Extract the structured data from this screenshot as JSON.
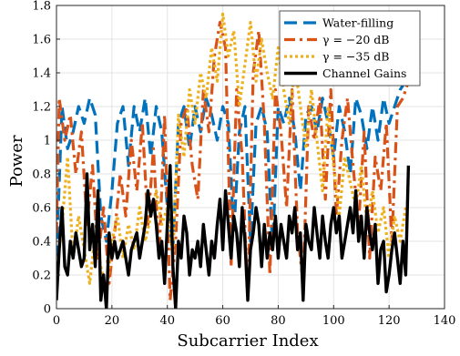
{
  "chart_data": {
    "type": "line",
    "xlabel": "Subcarrier Index",
    "ylabel": "Power",
    "xlim": [
      0,
      140
    ],
    "ylim": [
      0,
      1.8
    ],
    "xticks": [
      0,
      20,
      40,
      60,
      80,
      100,
      120,
      140
    ],
    "yticks": [
      0,
      0.2,
      0.4,
      0.6,
      0.8,
      1,
      1.2,
      1.4,
      1.6,
      1.8
    ],
    "xtick_labels": [
      "0",
      "20",
      "40",
      "60",
      "80",
      "100",
      "120",
      "140"
    ],
    "ytick_labels": [
      "0",
      "0.2",
      "0.4",
      "0.6",
      "0.8",
      "1",
      "1.2",
      "1.4",
      "1.6",
      "1.8"
    ],
    "grid": true,
    "legend_position": "top-right",
    "series": [
      {
        "name": "Water-filling",
        "color": "#0072bd",
        "style": "dashed",
        "x": [
          0,
          2,
          4,
          6,
          8,
          10,
          12,
          14,
          16,
          18,
          20,
          22,
          24,
          26,
          28,
          30,
          32,
          34,
          36,
          38,
          40,
          42,
          44,
          46,
          48,
          50,
          52,
          54,
          56,
          58,
          60,
          62,
          64,
          66,
          68,
          70,
          72,
          74,
          76,
          78,
          80,
          82,
          84,
          86,
          88,
          90,
          92,
          94,
          96,
          98,
          100,
          102,
          104,
          106,
          108,
          110,
          112,
          114,
          116,
          118,
          120,
          122,
          124,
          126
        ],
        "y": [
          0.3,
          1.2,
          0.95,
          1.05,
          1.2,
          1.1,
          1.25,
          1.15,
          0.55,
          0.4,
          0.7,
          1.1,
          1.2,
          0.85,
          1.2,
          1.05,
          1.25,
          0.9,
          1.2,
          1.05,
          0.6,
          0.35,
          1.1,
          1.2,
          0.95,
          1.2,
          1.05,
          1.25,
          1.15,
          1.0,
          1.2,
          1.1,
          0.45,
          1.05,
          1.2,
          0.4,
          1.1,
          1.2,
          1.05,
          0.35,
          1.2,
          1.1,
          1.25,
          1.05,
          0.7,
          1.15,
          1.2,
          1.05,
          1.25,
          1.1,
          0.9,
          1.2,
          1.05,
          0.8,
          1.25,
          1.15,
          0.95,
          1.2,
          1.0,
          1.25,
          1.1,
          1.2,
          1.3,
          1.35
        ]
      },
      {
        "name": "γ = −20 dB",
        "color": "#d95319",
        "style": "dash-dot",
        "x": [
          0,
          1,
          3,
          5,
          7,
          9,
          11,
          13,
          15,
          17,
          19,
          21,
          23,
          25,
          27,
          29,
          31,
          33,
          35,
          37,
          39,
          41,
          43,
          45,
          47,
          49,
          51,
          53,
          55,
          57,
          59,
          61,
          63,
          65,
          67,
          69,
          71,
          73,
          75,
          77,
          79,
          81,
          83,
          85,
          87,
          89,
          91,
          93,
          95,
          97,
          99,
          101,
          103,
          105,
          107,
          109,
          111,
          113,
          115,
          117,
          119,
          121,
          123,
          125,
          127
        ],
        "y": [
          0.45,
          1.25,
          1.0,
          1.15,
          0.8,
          1.05,
          0.5,
          0.85,
          0.3,
          0.6,
          0.15,
          0.45,
          0.8,
          0.55,
          1.0,
          0.7,
          1.1,
          0.5,
          0.95,
          0.3,
          1.15,
          0.05,
          0.4,
          1.1,
          1.2,
          0.85,
          0.65,
          1.3,
          1.05,
          1.5,
          1.7,
          1.55,
          0.25,
          1.3,
          0.9,
          0.05,
          1.4,
          1.65,
          1.1,
          0.2,
          1.3,
          1.05,
          0.6,
          1.3,
          0.45,
          0.15,
          1.2,
          1.0,
          1.25,
          0.65,
          1.3,
          0.55,
          1.0,
          1.25,
          0.85,
          0.5,
          1.05,
          0.3,
          0.9,
          0.7,
          1.1,
          0.4,
          1.2,
          1.25,
          1.35
        ]
      },
      {
        "name": "γ = −35 dB",
        "color": "#edb120",
        "style": "dotted",
        "x": [
          0,
          2,
          4,
          6,
          8,
          10,
          12,
          14,
          16,
          18,
          20,
          22,
          24,
          26,
          28,
          30,
          32,
          34,
          36,
          38,
          40,
          42,
          44,
          46,
          48,
          50,
          52,
          54,
          56,
          58,
          60,
          62,
          64,
          66,
          68,
          70,
          72,
          74,
          76,
          78,
          80,
          82,
          84,
          86,
          88,
          90,
          92,
          94,
          96,
          98,
          100,
          102,
          104,
          106,
          108,
          110,
          112,
          114,
          116,
          118,
          120,
          122,
          124,
          126
        ],
        "y": [
          0.2,
          0.5,
          0.9,
          0.3,
          0.55,
          0.35,
          0.15,
          0.45,
          0.25,
          0.1,
          0.4,
          0.55,
          0.3,
          0.5,
          0.35,
          0.6,
          0.4,
          0.55,
          0.7,
          0.5,
          0.6,
          0.3,
          1.15,
          0.9,
          1.3,
          1.1,
          1.4,
          1.25,
          1.55,
          1.35,
          1.75,
          1.5,
          1.65,
          1.2,
          1.45,
          1.7,
          1.35,
          1.6,
          1.4,
          1.25,
          1.55,
          1.3,
          1.1,
          1.45,
          1.2,
          0.95,
          1.3,
          1.0,
          0.7,
          1.2,
          0.85,
          0.55,
          0.9,
          0.75,
          0.6,
          0.85,
          0.5,
          0.7,
          0.45,
          0.6,
          0.3,
          0.55,
          0.4,
          0.6
        ]
      },
      {
        "name": "Channel Gains",
        "color": "#000000",
        "style": "solid",
        "x": [
          0,
          1,
          2,
          3,
          4,
          5,
          6,
          7,
          8,
          9,
          10,
          11,
          12,
          13,
          14,
          15,
          16,
          17,
          18,
          19,
          20,
          21,
          22,
          23,
          24,
          25,
          26,
          27,
          28,
          29,
          30,
          31,
          32,
          33,
          34,
          35,
          36,
          37,
          38,
          39,
          40,
          41,
          42,
          43,
          44,
          45,
          46,
          47,
          48,
          49,
          50,
          51,
          52,
          53,
          54,
          55,
          56,
          57,
          58,
          59,
          60,
          61,
          62,
          63,
          64,
          65,
          66,
          67,
          68,
          69,
          70,
          71,
          72,
          73,
          74,
          75,
          76,
          77,
          78,
          79,
          80,
          81,
          82,
          83,
          84,
          85,
          86,
          87,
          88,
          89,
          90,
          91,
          92,
          93,
          94,
          95,
          96,
          97,
          98,
          99,
          100,
          101,
          102,
          103,
          104,
          105,
          106,
          107,
          108,
          109,
          110,
          111,
          112,
          113,
          114,
          115,
          116,
          117,
          118,
          119,
          120,
          121,
          122,
          123,
          124,
          125,
          126,
          127
        ],
        "y": [
          0.05,
          0.35,
          0.6,
          0.25,
          0.2,
          0.4,
          0.3,
          0.45,
          0.35,
          0.25,
          0.3,
          0.8,
          0.35,
          0.5,
          0.25,
          0.7,
          0.05,
          0.2,
          0.0,
          0.45,
          0.3,
          0.4,
          0.3,
          0.35,
          0.4,
          0.3,
          0.2,
          0.35,
          0.4,
          0.45,
          0.3,
          0.4,
          0.5,
          0.7,
          0.55,
          0.65,
          0.5,
          0.3,
          0.4,
          0.15,
          0.5,
          0.85,
          0.25,
          0.0,
          0.4,
          0.3,
          0.55,
          0.45,
          0.2,
          0.35,
          0.3,
          0.4,
          0.25,
          0.5,
          0.35,
          0.2,
          0.4,
          0.3,
          0.5,
          0.65,
          0.35,
          0.7,
          0.5,
          0.3,
          0.55,
          0.45,
          0.25,
          0.6,
          0.4,
          0.05,
          0.35,
          0.45,
          0.6,
          0.5,
          0.25,
          0.5,
          0.3,
          0.45,
          0.35,
          0.55,
          0.3,
          0.5,
          0.4,
          0.3,
          0.55,
          0.45,
          0.6,
          0.35,
          0.45,
          0.05,
          0.5,
          0.4,
          0.35,
          0.6,
          0.45,
          0.3,
          0.55,
          0.4,
          0.3,
          0.5,
          0.6,
          0.45,
          0.55,
          0.3,
          0.4,
          0.5,
          0.6,
          0.45,
          0.7,
          0.4,
          0.55,
          0.3,
          0.6,
          0.45,
          0.35,
          0.5,
          0.15,
          0.35,
          0.4,
          0.1,
          0.2,
          0.35,
          0.45,
          0.3,
          0.15,
          0.4,
          0.2,
          0.85
        ]
      }
    ]
  }
}
